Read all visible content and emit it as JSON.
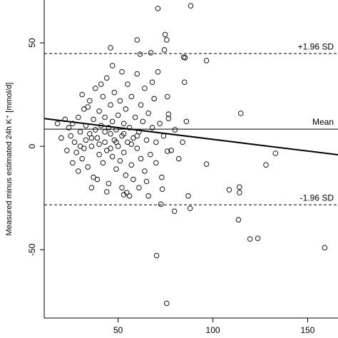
{
  "chart_data": {
    "type": "scatter",
    "ylabel": "Measured minus estimated 24h K⁺ [mmol/d]",
    "x": [
      71,
      88.3,
      74.8,
      75.6,
      60,
      46,
      61.6,
      67.3,
      84.6,
      85.3,
      96.6,
      74.4,
      85,
      114.7,
      76,
      96.6,
      133,
      128,
      114,
      108.6,
      114,
      87,
      66,
      73.3,
      72.6,
      79.7,
      113.5,
      70.3,
      119.6,
      123.7,
      159,
      75.6,
      88,
      54.5,
      53,
      86,
      76.6,
      76.6,
      22,
      24,
      25,
      26,
      27,
      28,
      29,
      30,
      31,
      32,
      33,
      33,
      34,
      35,
      35,
      36,
      37,
      37,
      38,
      38,
      39,
      40,
      40,
      41,
      42,
      42,
      43,
      43,
      44,
      44,
      45,
      45,
      46,
      46,
      47,
      47,
      48,
      48,
      49,
      49,
      50,
      50,
      51,
      51,
      52,
      52,
      53,
      53,
      54,
      54,
      55,
      55,
      56,
      57,
      57,
      58,
      59,
      60,
      60,
      61,
      62,
      62,
      63,
      64,
      64,
      65,
      66,
      67,
      68,
      69,
      70,
      70,
      72,
      73,
      74,
      76,
      78,
      80,
      82,
      84,
      20,
      18,
      23,
      26,
      29,
      31,
      34,
      36,
      39,
      41,
      44,
      47,
      52,
      56,
      58,
      61,
      65,
      68,
      71,
      30,
      32,
      36,
      40,
      43,
      46,
      49,
      53,
      57,
      60
    ],
    "values": [
      66.6,
      67.9,
      54,
      51.4,
      51.4,
      47.6,
      44.5,
      45.2,
      43.1,
      42.8,
      41.4,
      46.6,
      31,
      15.9,
      -2.4,
      -8.6,
      -3.4,
      -9,
      -19.7,
      -21,
      -22.4,
      -24,
      -24,
      -20.7,
      -28,
      -31.4,
      -35.5,
      -52.8,
      -44.8,
      -44.5,
      -49,
      -75.9,
      -30,
      -22.4,
      -23.4,
      12,
      15.5,
      13.4,
      13,
      9,
      5,
      11,
      2,
      -3,
      14,
      7,
      -6,
      18,
      3,
      10,
      -10,
      22,
      6,
      0,
      13,
      -15,
      8,
      28,
      4,
      -4,
      17,
      10,
      -8,
      24,
      2,
      14,
      -2,
      33,
      9,
      -18,
      6,
      20,
      -5,
      12,
      3,
      26,
      -11,
      8,
      15,
      0,
      -7,
      22,
      5,
      36,
      -3,
      11,
      18,
      -14,
      2,
      30,
      9,
      -9,
      24,
      4,
      14,
      -1,
      35,
      7,
      -6,
      20,
      12,
      -12,
      28,
      3,
      16,
      -4,
      9,
      23,
      -8,
      2,
      11,
      -15,
      5,
      24,
      -2,
      8,
      -6,
      2,
      4,
      11,
      -2,
      -8,
      -12,
      25,
      19,
      -20,
      -16,
      30,
      -22,
      39,
      -20,
      -24,
      -16,
      -20,
      -17,
      31,
      36,
      0,
      -1,
      4,
      1,
      7,
      -1,
      2,
      6,
      1,
      5
    ],
    "reference_lines": [
      {
        "label": "+1.96 SD",
        "value": 44.8,
        "style": "dashed"
      },
      {
        "label": "Mean",
        "value": 8.3,
        "style": "solid"
      },
      {
        "label": "-1.96 SD",
        "value": -28.3,
        "style": "dashed"
      }
    ],
    "regression_line": {
      "x": [
        11,
        166
      ],
      "y": [
        13.4,
        -4.1
      ]
    },
    "color": "#000000",
    "xlim": [
      11,
      166
    ],
    "ylim": [
      -83,
      70.7
    ],
    "xticks": [
      50,
      100,
      150
    ],
    "yticks": [
      -50,
      0,
      50
    ]
  }
}
